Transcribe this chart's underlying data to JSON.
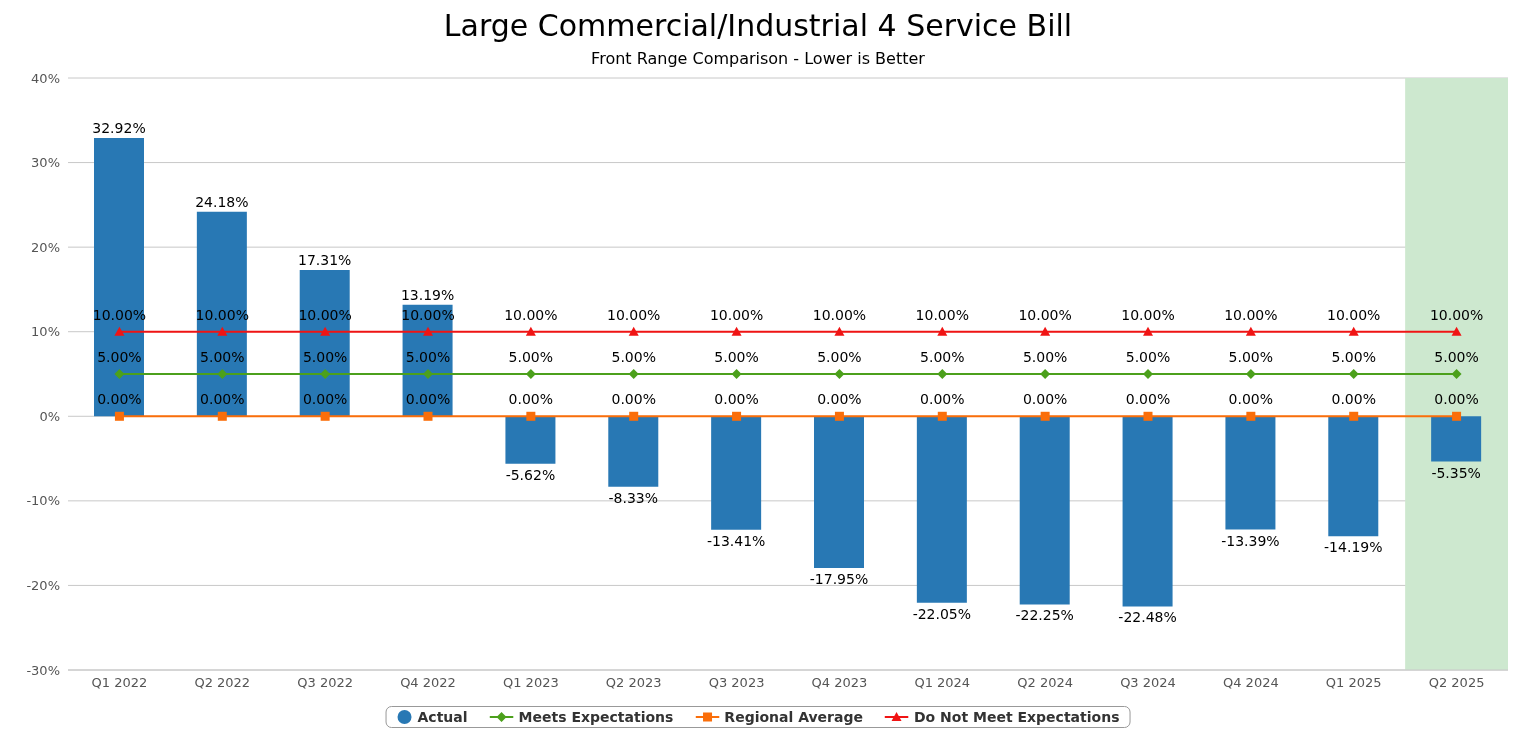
{
  "chart_data": {
    "type": "bar",
    "title": "Large Commercial/Industrial 4 Service Bill",
    "subtitle": "Front Range Comparison - Lower is Better",
    "categories": [
      "Q1 2022",
      "Q2 2022",
      "Q3 2022",
      "Q4 2022",
      "Q1 2023",
      "Q2 2023",
      "Q3 2023",
      "Q4 2023",
      "Q1 2024",
      "Q2 2024",
      "Q3 2024",
      "Q4 2024",
      "Q1 2025",
      "Q2 2025"
    ],
    "series": [
      {
        "name": "Actual",
        "color": "#2878b4",
        "values": [
          32.92,
          24.18,
          17.31,
          13.19,
          -5.62,
          -8.33,
          -13.41,
          -17.95,
          -22.05,
          -22.25,
          -22.48,
          -13.39,
          -14.19,
          -5.35
        ],
        "value_labels": [
          "32.92%",
          "24.18%",
          "17.31%",
          "13.19%",
          "-5.62%",
          "-8.33%",
          "-13.41%",
          "-17.95%",
          "-22.05%",
          "-22.25%",
          "-22.48%",
          "-13.39%",
          "-14.19%",
          "-5.35%"
        ]
      },
      {
        "name": "Meets Expectations",
        "type": "line",
        "color": "#4ca01c",
        "marker": "diamond",
        "values": [
          5,
          5,
          5,
          5,
          5,
          5,
          5,
          5,
          5,
          5,
          5,
          5,
          5,
          5
        ],
        "value_labels": [
          "5.00%",
          "5.00%",
          "5.00%",
          "5.00%",
          "5.00%",
          "5.00%",
          "5.00%",
          "5.00%",
          "5.00%",
          "5.00%",
          "5.00%",
          "5.00%",
          "5.00%",
          "5.00%"
        ]
      },
      {
        "name": "Regional Average",
        "type": "line",
        "color": "#fa6e0a",
        "marker": "square",
        "values": [
          0,
          0,
          0,
          0,
          0,
          0,
          0,
          0,
          0,
          0,
          0,
          0,
          0,
          0
        ],
        "value_labels": [
          "0.00%",
          "0.00%",
          "0.00%",
          "0.00%",
          "0.00%",
          "0.00%",
          "0.00%",
          "0.00%",
          "0.00%",
          "0.00%",
          "0.00%",
          "0.00%",
          "0.00%",
          "0.00%"
        ]
      },
      {
        "name": "Do Not Meet Expectations",
        "type": "line",
        "color": "#f01414",
        "marker": "triangle",
        "values": [
          10,
          10,
          10,
          10,
          10,
          10,
          10,
          10,
          10,
          10,
          10,
          10,
          10,
          10
        ],
        "value_labels": [
          "10.00%",
          "10.00%",
          "10.00%",
          "10.00%",
          "10.00%",
          "10.00%",
          "10.00%",
          "10.00%",
          "10.00%",
          "10.00%",
          "10.00%",
          "10.00%",
          "10.00%",
          "10.00%"
        ]
      }
    ],
    "ylim": [
      -30,
      40
    ],
    "yticks": [
      {
        "value": -30,
        "label": "-30%"
      },
      {
        "value": -20,
        "label": "-20%"
      },
      {
        "value": -10,
        "label": "-10%"
      },
      {
        "value": 0,
        "label": "0%"
      },
      {
        "value": 10,
        "label": "10%"
      },
      {
        "value": 20,
        "label": "20%"
      },
      {
        "value": 30,
        "label": "30%"
      },
      {
        "value": 40,
        "label": "40%"
      }
    ],
    "bands": [
      {
        "axis": "x",
        "from": "Q2 2025",
        "to": "Q2 2025",
        "color": "#cde8cf"
      }
    ],
    "grid": "y",
    "legend": "bottom"
  }
}
